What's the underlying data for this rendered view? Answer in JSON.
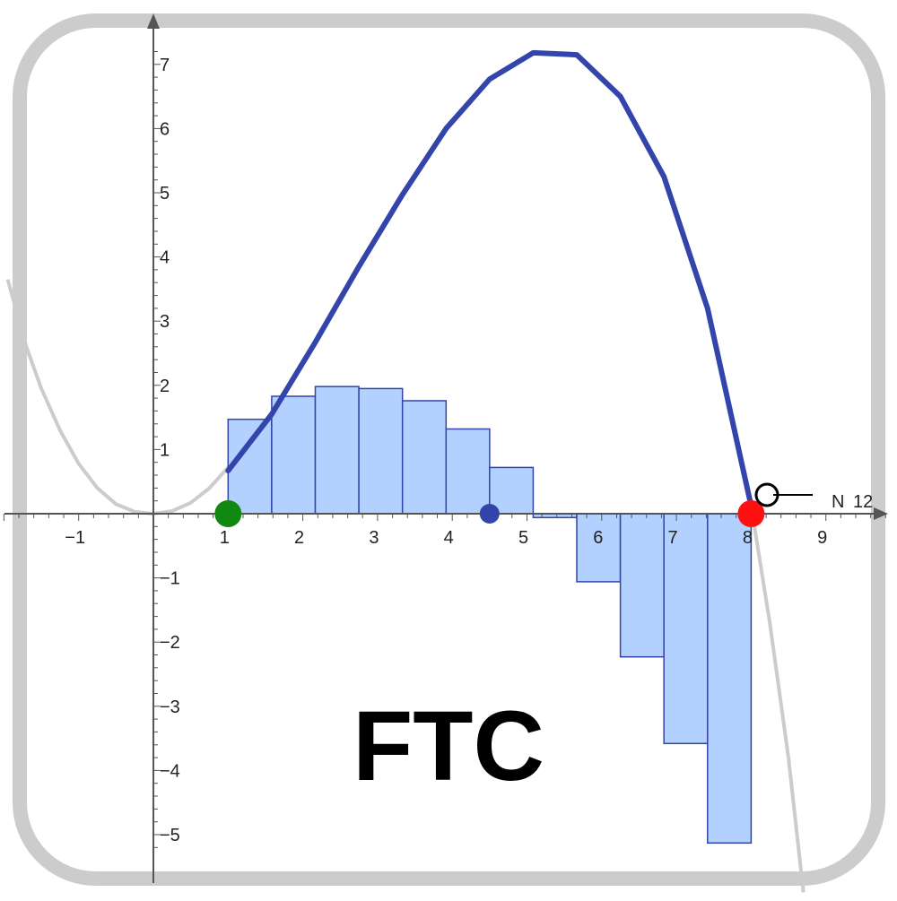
{
  "title": "FTC",
  "slider": {
    "label": "N",
    "value": 12
  },
  "colors": {
    "frame": "#cccccc",
    "axis": "#555555",
    "curve": "#3344aa",
    "background_curve": "#cccccc",
    "rect_fill": "#b3d1ff",
    "rect_stroke": "#3344aa",
    "start_point": "#118811",
    "end_point": "#ff1111",
    "sample_point": "#3344aa"
  },
  "chart_data": {
    "type": "bar",
    "xlim": [
      -2,
      10
    ],
    "ylim": [
      -5.3,
      7.7
    ],
    "x_ticks": [
      "−1",
      "1",
      "2",
      "3",
      "4",
      "5",
      "6",
      "7",
      "8",
      "9"
    ],
    "x_tick_values": [
      -1,
      1,
      2,
      3,
      4,
      5,
      6,
      7,
      8,
      9
    ],
    "y_ticks": [
      "−5",
      "−4",
      "−3",
      "−2",
      "−1",
      "1",
      "2",
      "3",
      "4",
      "5",
      "6",
      "7"
    ],
    "y_tick_values": [
      -5,
      -4,
      -3,
      -2,
      -1,
      1,
      2,
      3,
      4,
      5,
      6,
      7
    ],
    "grid": false,
    "interval": [
      1,
      8
    ],
    "n": 12,
    "bar_left_edges": [
      1,
      1.5833,
      2.1667,
      2.75,
      3.3333,
      3.9167,
      4.5,
      5.0833,
      5.6667,
      6.25,
      6.8333,
      7.4167
    ],
    "bar_width": 0.5833,
    "bar_values": [
      1.47,
      1.83,
      1.98,
      1.95,
      1.76,
      1.32,
      0.72,
      -0.06,
      -1.06,
      -2.23,
      -3.58,
      -5.13
    ],
    "integral_curve": {
      "x": [
        1,
        1.5833,
        2.1667,
        2.75,
        3.3333,
        3.9167,
        4.5,
        5.0833,
        5.6667,
        6.25,
        6.8333,
        7.4167,
        8
      ],
      "y": [
        0.67,
        1.55,
        2.67,
        3.85,
        4.97,
        6.0,
        6.77,
        7.18,
        7.15,
        6.5,
        5.25,
        3.2,
        0.12
      ]
    },
    "background_curve": {
      "x": [
        -1.95,
        -1.7,
        -1.5,
        -1.25,
        -1.0,
        -0.75,
        -0.5,
        -0.25,
        0,
        0.25,
        0.5,
        0.75,
        1.0,
        1.25,
        8.0,
        8.25,
        8.5,
        8.7
      ],
      "y": [
        3.65,
        2.6,
        1.95,
        1.3,
        0.78,
        0.4,
        0.15,
        0.03,
        0,
        0.04,
        0.17,
        0.4,
        0.72,
        1.05,
        0.12,
        -1.7,
        -3.8,
        -5.9
      ]
    },
    "points": {
      "start": {
        "x": 1,
        "y": 0
      },
      "end": {
        "x": 8,
        "y": 0
      },
      "sample": {
        "x": 4.5,
        "y": 0
      },
      "slider_handle": {
        "x": 8.2,
        "y": 0.3
      }
    }
  }
}
